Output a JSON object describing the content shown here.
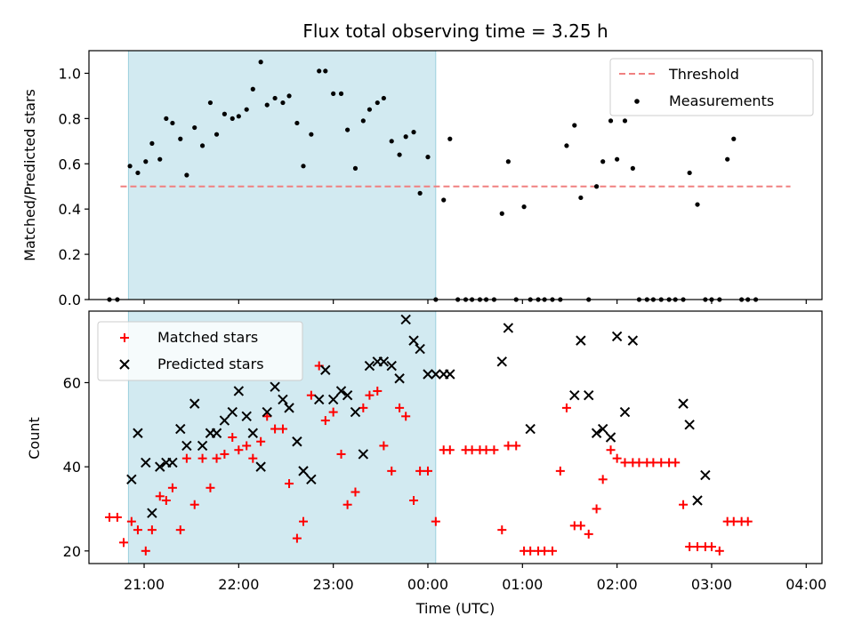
{
  "chart_data": [
    {
      "type": "scatter",
      "title": "Flux total observing time = 3.25 h",
      "xlabel": "",
      "ylabel": "Matched/Predicted stars",
      "ylim": [
        0.0,
        1.1
      ],
      "yticks": [
        "0.0",
        "0.2",
        "0.4",
        "0.6",
        "0.8",
        "1.0"
      ],
      "xlim": [
        "20:25",
        "04:10"
      ],
      "shaded_interval": [
        "20:50",
        "00:05"
      ],
      "legend": {
        "placement": "top-right",
        "entries": [
          "Threshold",
          "Measurements"
        ]
      },
      "threshold": {
        "name": "Threshold",
        "value": 0.5,
        "x_range": [
          "20:45",
          "03:50"
        ],
        "color": "#f08080"
      },
      "series": [
        {
          "name": "Measurements",
          "color": "#000000",
          "points": [
            [
              "20:38",
              0.0
            ],
            [
              "20:43",
              0.0
            ],
            [
              "20:51",
              0.59
            ],
            [
              "20:56",
              0.56
            ],
            [
              "21:01",
              0.61
            ],
            [
              "21:05",
              0.69
            ],
            [
              "21:10",
              0.62
            ],
            [
              "21:14",
              0.8
            ],
            [
              "21:18",
              0.78
            ],
            [
              "21:23",
              0.71
            ],
            [
              "21:27",
              0.55
            ],
            [
              "21:32",
              0.76
            ],
            [
              "21:37",
              0.68
            ],
            [
              "21:42",
              0.87
            ],
            [
              "21:46",
              0.73
            ],
            [
              "21:51",
              0.82
            ],
            [
              "21:56",
              0.8
            ],
            [
              "22:00",
              0.81
            ],
            [
              "22:05",
              0.84
            ],
            [
              "22:09",
              0.93
            ],
            [
              "22:14",
              1.05
            ],
            [
              "22:18",
              0.86
            ],
            [
              "22:23",
              0.89
            ],
            [
              "22:28",
              0.87
            ],
            [
              "22:32",
              0.9
            ],
            [
              "22:37",
              0.78
            ],
            [
              "22:41",
              0.59
            ],
            [
              "22:46",
              0.73
            ],
            [
              "22:51",
              1.01
            ],
            [
              "22:55",
              1.01
            ],
            [
              "23:00",
              0.91
            ],
            [
              "23:05",
              0.91
            ],
            [
              "23:09",
              0.75
            ],
            [
              "23:14",
              0.58
            ],
            [
              "23:19",
              0.79
            ],
            [
              "23:23",
              0.84
            ],
            [
              "23:28",
              0.87
            ],
            [
              "23:32",
              0.89
            ],
            [
              "23:37",
              0.7
            ],
            [
              "23:42",
              0.64
            ],
            [
              "23:46",
              0.72
            ],
            [
              "23:51",
              0.74
            ],
            [
              "23:55",
              0.47
            ],
            [
              "24:00",
              0.63
            ],
            [
              "24:05",
              0.0
            ],
            [
              "24:10",
              0.44
            ],
            [
              "24:14",
              0.71
            ],
            [
              "24:19",
              0.0
            ],
            [
              "24:24",
              0.0
            ],
            [
              "24:28",
              0.0
            ],
            [
              "24:33",
              0.0
            ],
            [
              "24:37",
              0.0
            ],
            [
              "24:42",
              0.0
            ],
            [
              "24:47",
              0.38
            ],
            [
              "24:51",
              0.61
            ],
            [
              "24:56",
              0.0
            ],
            [
              "25:01",
              0.41
            ],
            [
              "25:05",
              0.0
            ],
            [
              "25:10",
              0.0
            ],
            [
              "25:14",
              0.0
            ],
            [
              "25:19",
              0.0
            ],
            [
              "25:24",
              0.0
            ],
            [
              "25:28",
              0.68
            ],
            [
              "25:33",
              0.77
            ],
            [
              "25:37",
              0.45
            ],
            [
              "25:42",
              0.0
            ],
            [
              "25:47",
              0.5
            ],
            [
              "25:51",
              0.61
            ],
            [
              "25:56",
              0.79
            ],
            [
              "26:00",
              0.62
            ],
            [
              "26:05",
              0.79
            ],
            [
              "26:10",
              0.58
            ],
            [
              "26:14",
              0.0
            ],
            [
              "26:19",
              0.0
            ],
            [
              "26:23",
              0.0
            ],
            [
              "26:28",
              0.0
            ],
            [
              "26:33",
              0.0
            ],
            [
              "26:37",
              0.0
            ],
            [
              "26:42",
              0.0
            ],
            [
              "26:46",
              0.56
            ],
            [
              "26:51",
              0.42
            ],
            [
              "26:56",
              0.0
            ],
            [
              "27:00",
              0.0
            ],
            [
              "27:05",
              0.0
            ],
            [
              "27:10",
              0.62
            ],
            [
              "27:14",
              0.71
            ],
            [
              "27:19",
              0.0
            ],
            [
              "27:23",
              0.0
            ],
            [
              "27:28",
              0.0
            ]
          ]
        }
      ]
    },
    {
      "type": "scatter",
      "title": "",
      "xlabel": "Time (UTC)",
      "ylabel": "Count",
      "ylim": [
        17,
        77
      ],
      "yticks": [
        "20",
        "40",
        "60"
      ],
      "xticks": [
        "21:00",
        "22:00",
        "23:00",
        "00:00",
        "01:00",
        "02:00",
        "03:00",
        "04:00"
      ],
      "xlim": [
        "20:25",
        "04:10"
      ],
      "shaded_interval": [
        "20:50",
        "00:05"
      ],
      "legend": {
        "placement": "top-left",
        "entries": [
          "Matched stars",
          "Predicted stars"
        ]
      },
      "series": [
        {
          "name": "Matched stars",
          "color": "#ff0000",
          "points": [
            [
              "20:38",
              28
            ],
            [
              "20:43",
              28
            ],
            [
              "20:47",
              22
            ],
            [
              "20:52",
              27
            ],
            [
              "20:56",
              25
            ],
            [
              "21:01",
              20
            ],
            [
              "21:05",
              25
            ],
            [
              "21:10",
              33
            ],
            [
              "21:14",
              32
            ],
            [
              "21:18",
              35
            ],
            [
              "21:23",
              25
            ],
            [
              "21:27",
              42
            ],
            [
              "21:32",
              31
            ],
            [
              "21:37",
              42
            ],
            [
              "21:42",
              35
            ],
            [
              "21:46",
              42
            ],
            [
              "21:51",
              43
            ],
            [
              "21:56",
              47
            ],
            [
              "22:00",
              44
            ],
            [
              "22:05",
              45
            ],
            [
              "22:09",
              42
            ],
            [
              "22:14",
              46
            ],
            [
              "22:18",
              52
            ],
            [
              "22:23",
              49
            ],
            [
              "22:28",
              49
            ],
            [
              "22:32",
              36
            ],
            [
              "22:37",
              23
            ],
            [
              "22:41",
              27
            ],
            [
              "22:46",
              57
            ],
            [
              "22:51",
              64
            ],
            [
              "22:55",
              51
            ],
            [
              "23:00",
              53
            ],
            [
              "23:05",
              43
            ],
            [
              "23:09",
              31
            ],
            [
              "23:14",
              34
            ],
            [
              "23:19",
              54
            ],
            [
              "23:23",
              57
            ],
            [
              "23:28",
              58
            ],
            [
              "23:32",
              45
            ],
            [
              "23:37",
              39
            ],
            [
              "23:42",
              54
            ],
            [
              "23:46",
              52
            ],
            [
              "23:51",
              32
            ],
            [
              "23:55",
              39
            ],
            [
              "24:00",
              39
            ],
            [
              "24:05",
              27
            ],
            [
              "24:10",
              44
            ],
            [
              "24:14",
              44
            ],
            [
              "24:24",
              44
            ],
            [
              "24:28",
              44
            ],
            [
              "24:33",
              44
            ],
            [
              "24:37",
              44
            ],
            [
              "24:42",
              44
            ],
            [
              "24:47",
              25
            ],
            [
              "24:51",
              45
            ],
            [
              "24:56",
              45
            ],
            [
              "25:01",
              20
            ],
            [
              "25:05",
              20
            ],
            [
              "25:10",
              20
            ],
            [
              "25:14",
              20
            ],
            [
              "25:19",
              20
            ],
            [
              "25:24",
              39
            ],
            [
              "25:28",
              54
            ],
            [
              "25:33",
              26
            ],
            [
              "25:37",
              26
            ],
            [
              "25:42",
              24
            ],
            [
              "25:47",
              30
            ],
            [
              "25:51",
              37
            ],
            [
              "25:56",
              44
            ],
            [
              "26:00",
              42
            ],
            [
              "26:05",
              41
            ],
            [
              "26:10",
              41
            ],
            [
              "26:14",
              41
            ],
            [
              "26:19",
              41
            ],
            [
              "26:23",
              41
            ],
            [
              "26:28",
              41
            ],
            [
              "26:33",
              41
            ],
            [
              "26:37",
              41
            ],
            [
              "26:42",
              31
            ],
            [
              "26:46",
              21
            ],
            [
              "26:51",
              21
            ],
            [
              "26:56",
              21
            ],
            [
              "27:00",
              21
            ],
            [
              "27:05",
              20
            ],
            [
              "27:10",
              27
            ],
            [
              "27:14",
              27
            ],
            [
              "27:19",
              27
            ],
            [
              "27:23",
              27
            ]
          ]
        },
        {
          "name": "Predicted stars",
          "color": "#000000",
          "points": [
            [
              "20:52",
              37
            ],
            [
              "20:56",
              48
            ],
            [
              "21:01",
              41
            ],
            [
              "21:05",
              29
            ],
            [
              "21:10",
              40
            ],
            [
              "21:14",
              41
            ],
            [
              "21:18",
              41
            ],
            [
              "21:23",
              49
            ],
            [
              "21:27",
              45
            ],
            [
              "21:32",
              55
            ],
            [
              "21:37",
              45
            ],
            [
              "21:42",
              48
            ],
            [
              "21:46",
              48
            ],
            [
              "21:51",
              51
            ],
            [
              "21:56",
              53
            ],
            [
              "22:00",
              58
            ],
            [
              "22:05",
              52
            ],
            [
              "22:09",
              48
            ],
            [
              "22:14",
              40
            ],
            [
              "22:18",
              53
            ],
            [
              "22:23",
              59
            ],
            [
              "22:28",
              56
            ],
            [
              "22:32",
              54
            ],
            [
              "22:37",
              46
            ],
            [
              "22:41",
              39
            ],
            [
              "22:46",
              37
            ],
            [
              "22:51",
              56
            ],
            [
              "22:55",
              63
            ],
            [
              "23:00",
              56
            ],
            [
              "23:05",
              58
            ],
            [
              "23:09",
              57
            ],
            [
              "23:14",
              53
            ],
            [
              "23:19",
              43
            ],
            [
              "23:23",
              64
            ],
            [
              "23:28",
              65
            ],
            [
              "23:32",
              65
            ],
            [
              "23:37",
              64
            ],
            [
              "23:42",
              61
            ],
            [
              "23:46",
              75
            ],
            [
              "23:51",
              70
            ],
            [
              "23:55",
              68
            ],
            [
              "24:00",
              62
            ],
            [
              "24:05",
              62
            ],
            [
              "24:10",
              62
            ],
            [
              "24:14",
              62
            ],
            [
              "24:47",
              65
            ],
            [
              "24:51",
              73
            ],
            [
              "25:05",
              49
            ],
            [
              "25:33",
              57
            ],
            [
              "25:37",
              70
            ],
            [
              "25:42",
              57
            ],
            [
              "25:47",
              48
            ],
            [
              "25:51",
              49
            ],
            [
              "25:56",
              47
            ],
            [
              "26:00",
              71
            ],
            [
              "26:05",
              53
            ],
            [
              "26:10",
              70
            ],
            [
              "26:42",
              55
            ],
            [
              "26:46",
              50
            ],
            [
              "26:51",
              32
            ],
            [
              "26:56",
              38
            ]
          ]
        }
      ]
    }
  ]
}
